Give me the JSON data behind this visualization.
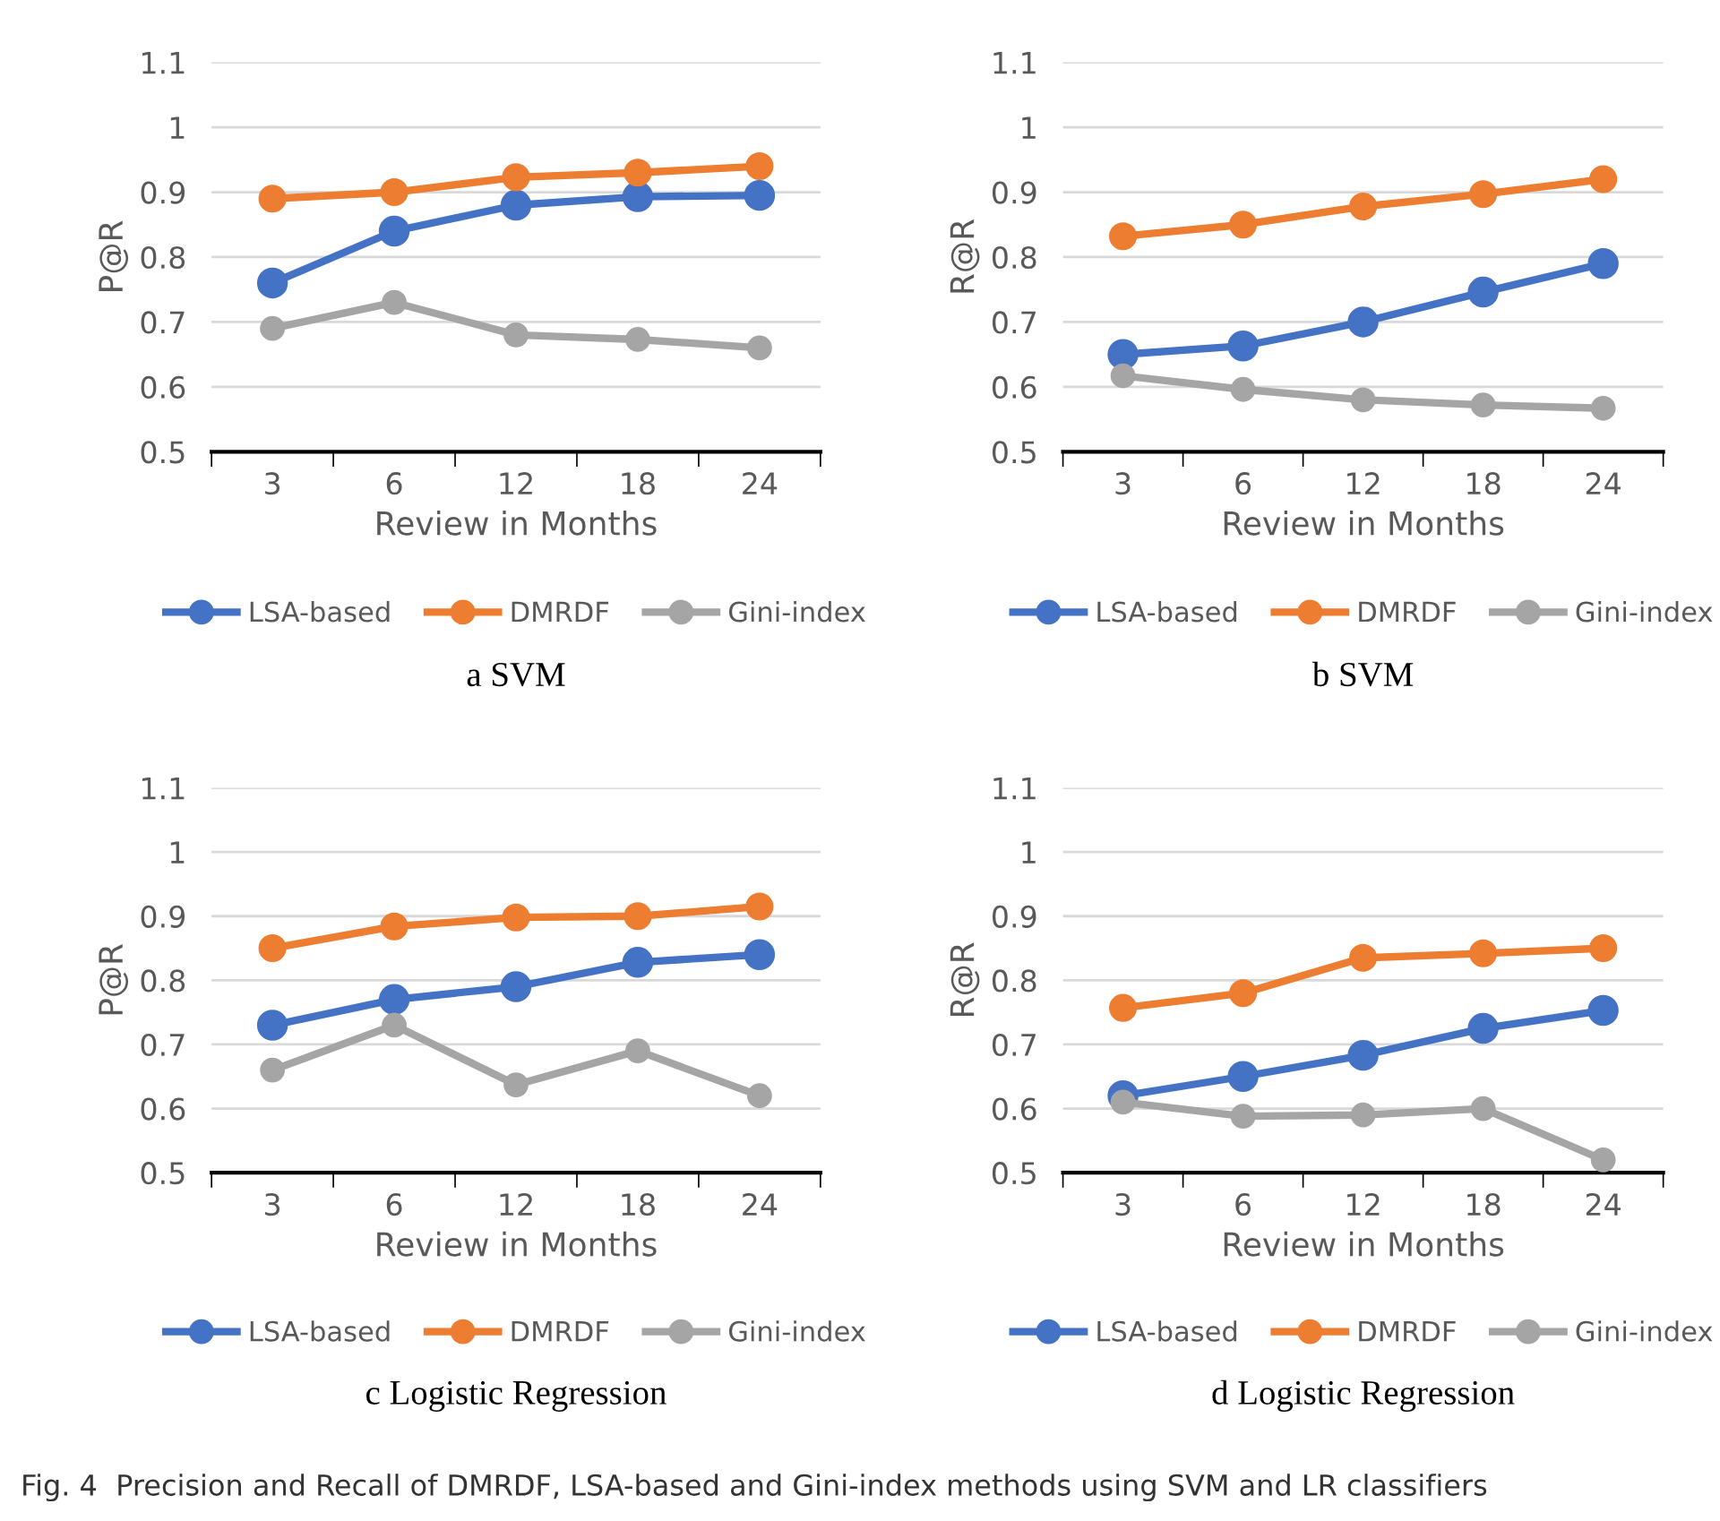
{
  "chart_data": [
    {
      "type": "line",
      "title": "a SVM",
      "xlabel": "Review in Months",
      "ylabel": "P@R",
      "categories": [
        "3",
        "6",
        "12",
        "18",
        "24"
      ],
      "ylim": [
        0.5,
        1.1
      ],
      "yticks": [
        0.5,
        0.6,
        0.7,
        0.8,
        0.9,
        1,
        1.1
      ],
      "grid": "y",
      "legend": "bottom",
      "marker": "circle",
      "series": [
        {
          "name": "LSA-based",
          "color": "#4472c4",
          "values": [
            0.76,
            0.84,
            0.88,
            0.893,
            0.895
          ]
        },
        {
          "name": "DMRDF",
          "color": "#ed7d31",
          "values": [
            0.89,
            0.9,
            0.923,
            0.93,
            0.94
          ]
        },
        {
          "name": "Gini-index",
          "color": "#a5a5a5",
          "values": [
            0.69,
            0.73,
            0.68,
            0.673,
            0.66
          ]
        }
      ]
    },
    {
      "type": "line",
      "title": "b SVM",
      "xlabel": "Review in Months",
      "ylabel": "R@R",
      "categories": [
        "3",
        "6",
        "12",
        "18",
        "24"
      ],
      "ylim": [
        0.5,
        1.1
      ],
      "yticks": [
        0.5,
        0.6,
        0.7,
        0.8,
        0.9,
        1,
        1.1
      ],
      "grid": "y",
      "legend": "bottom",
      "marker": "circle",
      "series": [
        {
          "name": "LSA-based",
          "color": "#4472c4",
          "values": [
            0.65,
            0.663,
            0.7,
            0.746,
            0.79
          ]
        },
        {
          "name": "DMRDF",
          "color": "#ed7d31",
          "values": [
            0.832,
            0.85,
            0.878,
            0.897,
            0.92
          ]
        },
        {
          "name": "Gini-index",
          "color": "#a5a5a5",
          "values": [
            0.617,
            0.596,
            0.58,
            0.572,
            0.567
          ]
        }
      ]
    },
    {
      "type": "line",
      "title": "c Logistic Regression",
      "xlabel": "Review in Months",
      "ylabel": "P@R",
      "categories": [
        "3",
        "6",
        "12",
        "18",
        "24"
      ],
      "ylim": [
        0.5,
        1.1
      ],
      "yticks": [
        0.5,
        0.6,
        0.7,
        0.8,
        0.9,
        1,
        1.1
      ],
      "grid": "y",
      "legend": "bottom",
      "marker": "circle",
      "series": [
        {
          "name": "LSA-based",
          "color": "#4472c4",
          "values": [
            0.73,
            0.77,
            0.79,
            0.828,
            0.84
          ]
        },
        {
          "name": "DMRDF",
          "color": "#ed7d31",
          "values": [
            0.85,
            0.884,
            0.898,
            0.9,
            0.915
          ]
        },
        {
          "name": "Gini-index",
          "color": "#a5a5a5",
          "values": [
            0.66,
            0.73,
            0.637,
            0.69,
            0.62
          ]
        }
      ]
    },
    {
      "type": "line",
      "title": "d Logistic Regression",
      "xlabel": "Review in Months",
      "ylabel": "R@R",
      "categories": [
        "3",
        "6",
        "12",
        "18",
        "24"
      ],
      "ylim": [
        0.5,
        1.1
      ],
      "yticks": [
        0.5,
        0.6,
        0.7,
        0.8,
        0.9,
        1,
        1.1
      ],
      "grid": "y",
      "legend": "bottom",
      "marker": "circle",
      "annotations": [
        "Fig. 4  Precision and Recall of DMRDF, LSA-based and Gini-index methods using SVM and LR classifiers"
      ],
      "series": [
        {
          "name": "LSA-based",
          "color": "#4472c4",
          "values": [
            0.62,
            0.65,
            0.683,
            0.725,
            0.753
          ]
        },
        {
          "name": "DMRDF",
          "color": "#ed7d31",
          "values": [
            0.757,
            0.78,
            0.835,
            0.842,
            0.85
          ]
        },
        {
          "name": "Gini-index",
          "color": "#a5a5a5",
          "values": [
            0.61,
            0.588,
            0.59,
            0.6,
            0.52
          ]
        }
      ]
    }
  ]
}
